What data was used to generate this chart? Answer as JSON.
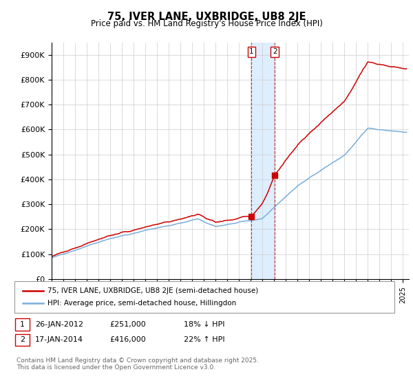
{
  "title": "75, IVER LANE, UXBRIDGE, UB8 2JE",
  "subtitle": "Price paid vs. HM Land Registry's House Price Index (HPI)",
  "red_color": "#cc0000",
  "blue_color": "#7aadda",
  "shade_color": "#ddeeff",
  "transaction1_date": 2012.07,
  "transaction1_price": 251000,
  "transaction2_date": 2014.05,
  "transaction2_price": 416000,
  "ylabel_ticks": [
    0,
    100000,
    200000,
    300000,
    400000,
    500000,
    600000,
    700000,
    800000,
    900000
  ],
  "ylabel_labels": [
    "£0",
    "£100K",
    "£200K",
    "£300K",
    "£400K",
    "£500K",
    "£600K",
    "£700K",
    "£800K",
    "£900K"
  ],
  "xmin": 1995,
  "xmax": 2025.5,
  "ymin": 0,
  "ymax": 950000,
  "legend_line1": "75, IVER LANE, UXBRIDGE, UB8 2JE (semi-detached house)",
  "legend_line2": "HPI: Average price, semi-detached house, Hillingdon",
  "footer": "Contains HM Land Registry data © Crown copyright and database right 2025.\nThis data is licensed under the Open Government Licence v3.0.",
  "background_color": "#ffffff",
  "grid_color": "#cccccc"
}
